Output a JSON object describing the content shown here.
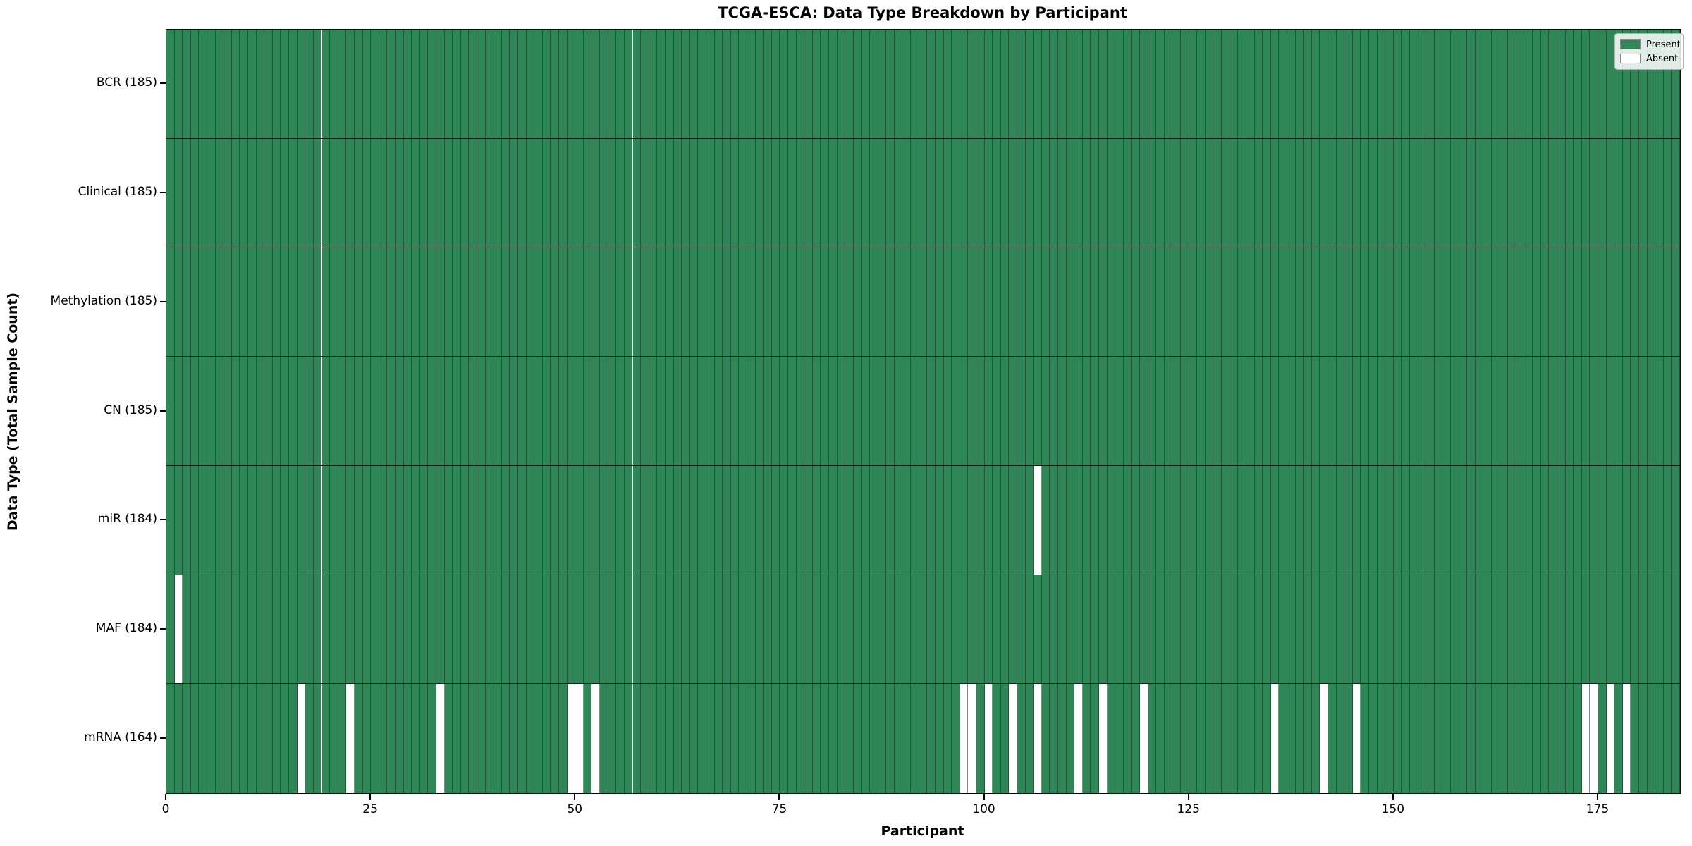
{
  "chart_data": {
    "type": "heatmap",
    "title": "TCGA-ESCA: Data Type Breakdown by Participant",
    "xlabel": "Participant",
    "ylabel": "Data Type (Total Sample Count)",
    "n_participants": 185,
    "x_ticks": [
      0,
      25,
      50,
      75,
      100,
      125,
      150,
      175
    ],
    "legend": {
      "position": "upper right",
      "entries": [
        {
          "label": "Present",
          "color": "#2f8757"
        },
        {
          "label": "Absent",
          "color": "#ffffff"
        }
      ]
    },
    "colors": {
      "present": "#2f8757",
      "absent": "#ffffff",
      "cell_edge": "rgba(25,45,32,0.55)"
    },
    "grid": false,
    "rows": [
      {
        "label": "BCR (185)",
        "name": "BCR",
        "total": 185,
        "absent_participants": []
      },
      {
        "label": "Clinical (185)",
        "name": "Clinical",
        "total": 185,
        "absent_participants": []
      },
      {
        "label": "Methylation (185)",
        "name": "Methylation",
        "total": 185,
        "absent_participants": []
      },
      {
        "label": "CN (185)",
        "name": "CN",
        "total": 185,
        "absent_participants": []
      },
      {
        "label": "miR (184)",
        "name": "miR",
        "total": 184,
        "absent_participants": [
          106
        ]
      },
      {
        "label": "MAF (184)",
        "name": "MAF",
        "total": 184,
        "absent_participants": [
          1
        ]
      },
      {
        "label": "mRNA (164)",
        "name": "mRNA",
        "total": 164,
        "absent_participants": [
          16,
          22,
          33,
          49,
          50,
          52,
          97,
          98,
          100,
          103,
          106,
          111,
          114,
          119,
          135,
          141,
          145,
          173,
          174,
          176,
          178
        ]
      }
    ]
  }
}
